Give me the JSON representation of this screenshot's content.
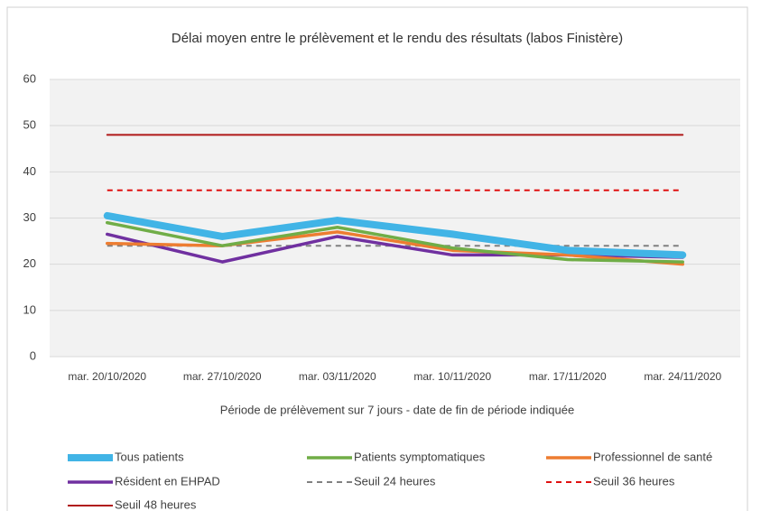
{
  "chart_data": {
    "type": "line",
    "title": "Délai moyen entre le prélèvement et le rendu des résultats (labos Finistère)",
    "x_label": "Période de prélèvement sur 7 jours - date de fin de période indiquée",
    "categories": [
      "mar. 20/10/2020",
      "mar. 27/10/2020",
      "mar. 03/11/2020",
      "mar. 10/11/2020",
      "mar. 17/11/2020",
      "mar. 24/11/2020"
    ],
    "series": [
      {
        "name": "Tous patients",
        "color": "#41b4e6",
        "values": [
          30.5,
          26,
          29.5,
          26.5,
          23,
          22
        ]
      },
      {
        "name": "Patients symptomatiques",
        "color": "#70ad47",
        "values": [
          29,
          24,
          28,
          23.5,
          21,
          20.5
        ]
      },
      {
        "name": "Professionnel de santé",
        "color": "#ed7d31",
        "values": [
          24.5,
          24,
          27,
          23,
          22,
          20
        ]
      },
      {
        "name": "Résident en EHPAD",
        "color": "#7030a0",
        "values": [
          26.5,
          20.5,
          26,
          22,
          22,
          21.5
        ]
      },
      {
        "name": "Seuil 24 heures",
        "color": "#808080",
        "dashed": true,
        "values": [
          24,
          24,
          24,
          24,
          24,
          24
        ]
      },
      {
        "name": "Seuil 36 heures",
        "color": "#e01010",
        "dashed": true,
        "values": [
          36,
          36,
          36,
          36,
          36,
          36
        ]
      },
      {
        "name": "Seuil 48 heures",
        "color": "#b01818",
        "values": [
          48,
          48,
          48,
          48,
          48,
          48
        ]
      }
    ],
    "ylim": [
      0,
      60
    ],
    "yticks": [
      0,
      10,
      20,
      30,
      40,
      50,
      60
    ],
    "grid": true
  }
}
